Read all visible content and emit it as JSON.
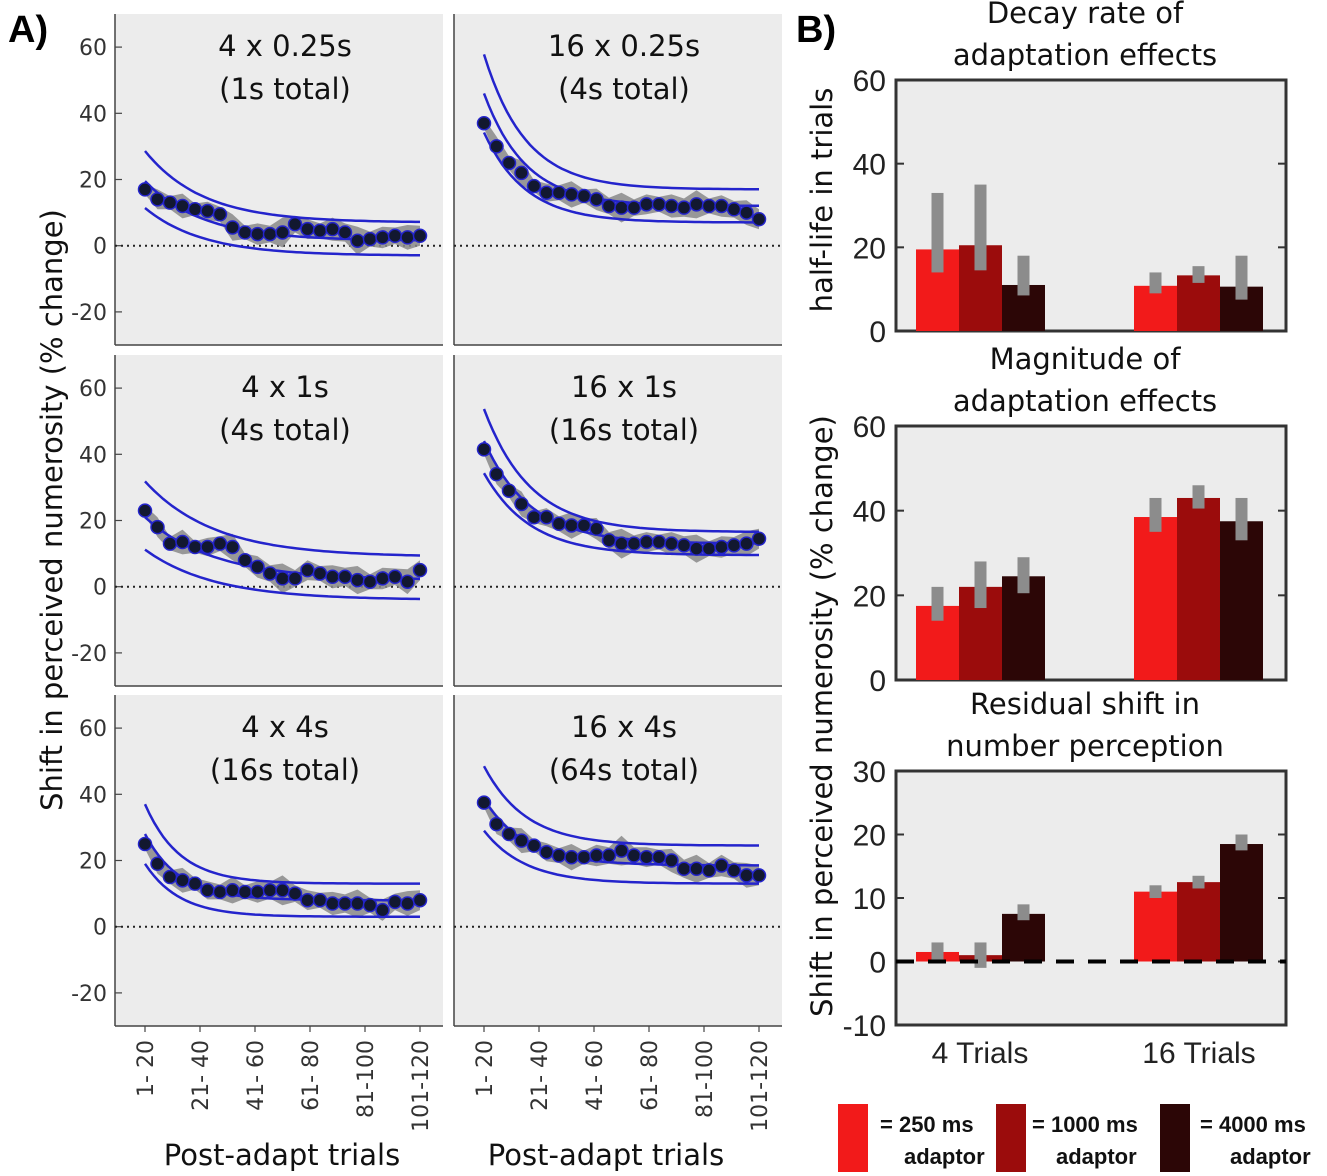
{
  "panel_labels": {
    "a": "A)",
    "b": "B)"
  },
  "chart_data": [
    {
      "type": "line",
      "panel": "A",
      "ylabel": "Shift in perceived numerosity (% change)",
      "xlabel": "Post-adapt trials",
      "x_tick_labels": [
        "1- 20",
        "21- 40",
        "41- 60",
        "61- 80",
        "81-100",
        "101-120"
      ],
      "y_ticks": [
        60,
        40,
        20,
        0,
        -20
      ],
      "ylim": [
        -30,
        70
      ],
      "x_range": [
        1,
        120
      ],
      "reference_line": 0,
      "subplots": [
        {
          "title_line1": "4 x 0.25s",
          "title_line2": "(1s total)",
          "tau": 25,
          "amp": 18,
          "offset": 1.5,
          "band_low": 4.5,
          "band_high": 5.5,
          "y": [
            17,
            14,
            13,
            12,
            11,
            10.5,
            9.5,
            5.5,
            4,
            3.5,
            3.5,
            4,
            6.5,
            5,
            4.5,
            5,
            4,
            1.5,
            2,
            2.5,
            3,
            2.5,
            3
          ]
        },
        {
          "title_line1": "16 x 0.25s",
          "title_line2": "(4s total)",
          "tau": 18,
          "amp": 34,
          "offset": 12,
          "band_low": 5,
          "band_high": 5,
          "y": [
            37,
            30,
            25,
            22,
            18,
            16,
            16,
            15.5,
            15,
            14,
            12,
            11.5,
            11.5,
            12.5,
            12.5,
            12,
            11.5,
            12.5,
            12,
            12,
            11,
            10,
            8
          ]
        },
        {
          "title_line1": "4 x 1s",
          "title_line2": "(4s total)",
          "tau": 30,
          "amp": 19,
          "offset": 2,
          "band_low": 6,
          "band_high": 7,
          "y": [
            23,
            18,
            13,
            13.5,
            12,
            12,
            13,
            12,
            8,
            6,
            4,
            2.5,
            2.5,
            5,
            4,
            3,
            3,
            2,
            1.5,
            2.5,
            3,
            1.5,
            5
          ]
        },
        {
          "title_line1": "16 x 1s",
          "title_line2": "(16s total)",
          "tau": 20,
          "amp": 31,
          "offset": 13,
          "band_low": 3.5,
          "band_high": 3.5,
          "y": [
            41.5,
            34,
            29,
            25,
            21,
            21,
            19,
            18.5,
            18.5,
            17.5,
            14,
            13,
            13,
            13.5,
            13.5,
            13,
            12.5,
            11.5,
            11.5,
            12,
            12.5,
            13,
            14.5
          ]
        },
        {
          "title_line1": "4 x 4s",
          "title_line2": "(16s total)",
          "tau": 15,
          "amp": 20,
          "offset": 8,
          "band_low": 5,
          "band_high": 5,
          "y": [
            25,
            19,
            15,
            14,
            13,
            11,
            10.5,
            11,
            10.5,
            10.5,
            11,
            11,
            10,
            8,
            8,
            7,
            7,
            7,
            6.5,
            5,
            7.5,
            7,
            8
          ]
        },
        {
          "title_line1": "16 x 4s",
          "title_line2": "(64s total)",
          "tau": 18,
          "amp": 20,
          "offset": 18.5,
          "band_low": 5.5,
          "band_high": 6,
          "y": [
            37.5,
            31,
            28,
            26,
            24.5,
            22.5,
            21.5,
            21,
            21,
            21.5,
            21.5,
            23,
            21.5,
            21,
            21,
            20,
            17.5,
            17.5,
            17,
            18.5,
            17,
            15.5,
            15.5
          ]
        }
      ]
    },
    {
      "type": "bar",
      "panel": "B",
      "categories": [
        "4 Trials",
        "16 Trials"
      ],
      "series_colors": [
        "#f21a1a",
        "#9b0c0c",
        "#2c0606"
      ],
      "error_color": "#8c8c8c",
      "subplots": [
        {
          "title_line1": "Decay rate of",
          "title_line2": "adaptation effects",
          "ylabel": "half-life in trials",
          "ylim": [
            0,
            60
          ],
          "y_ticks": [
            60,
            40,
            20,
            0
          ],
          "values": [
            [
              19.5,
              20.5,
              11
            ],
            [
              10.8,
              13.3,
              10.6
            ]
          ],
          "errors": [
            [
              [
                14,
                33
              ],
              [
                14.5,
                35
              ],
              [
                8.5,
                18
              ]
            ],
            [
              [
                9,
                14
              ],
              [
                11.5,
                15.5
              ],
              [
                7.5,
                18
              ]
            ]
          ],
          "zero_dash": false
        },
        {
          "title_line1": "Magnitude of",
          "title_line2": "adaptation effects",
          "ylabel": "Shift in perceived numerosity (% change)",
          "ylim": [
            0,
            60
          ],
          "y_ticks": [
            60,
            40,
            20,
            0
          ],
          "values": [
            [
              17.5,
              22,
              24.5
            ],
            [
              38.5,
              43,
              37.5
            ]
          ],
          "errors": [
            [
              [
                14,
                22
              ],
              [
                17,
                28
              ],
              [
                20.5,
                29
              ]
            ],
            [
              [
                35,
                43
              ],
              [
                40.5,
                46
              ],
              [
                33,
                43
              ]
            ]
          ],
          "zero_dash": false
        },
        {
          "title_line1": "Residual shift in",
          "title_line2": "number perception",
          "ylabel": "",
          "ylim": [
            -10,
            30
          ],
          "y_ticks": [
            30,
            20,
            10,
            0,
            -10
          ],
          "values": [
            [
              1.5,
              1,
              7.5
            ],
            [
              11,
              12.5,
              18.5
            ]
          ],
          "errors": [
            [
              [
                0,
                3
              ],
              [
                -1,
                3
              ],
              [
                6.5,
                9
              ]
            ],
            [
              [
                10,
                12
              ],
              [
                11.5,
                13.5
              ],
              [
                17.5,
                20
              ]
            ]
          ],
          "zero_dash": true
        }
      ],
      "legend": [
        {
          "line1": "= 250 ms",
          "line2": "adaptor",
          "color": "#f21a1a"
        },
        {
          "line1": "= 1000 ms",
          "line2": "adaptor",
          "color": "#9b0c0c"
        },
        {
          "line1": "= 4000 ms",
          "line2": "adaptor",
          "color": "#2c0606"
        }
      ]
    }
  ]
}
